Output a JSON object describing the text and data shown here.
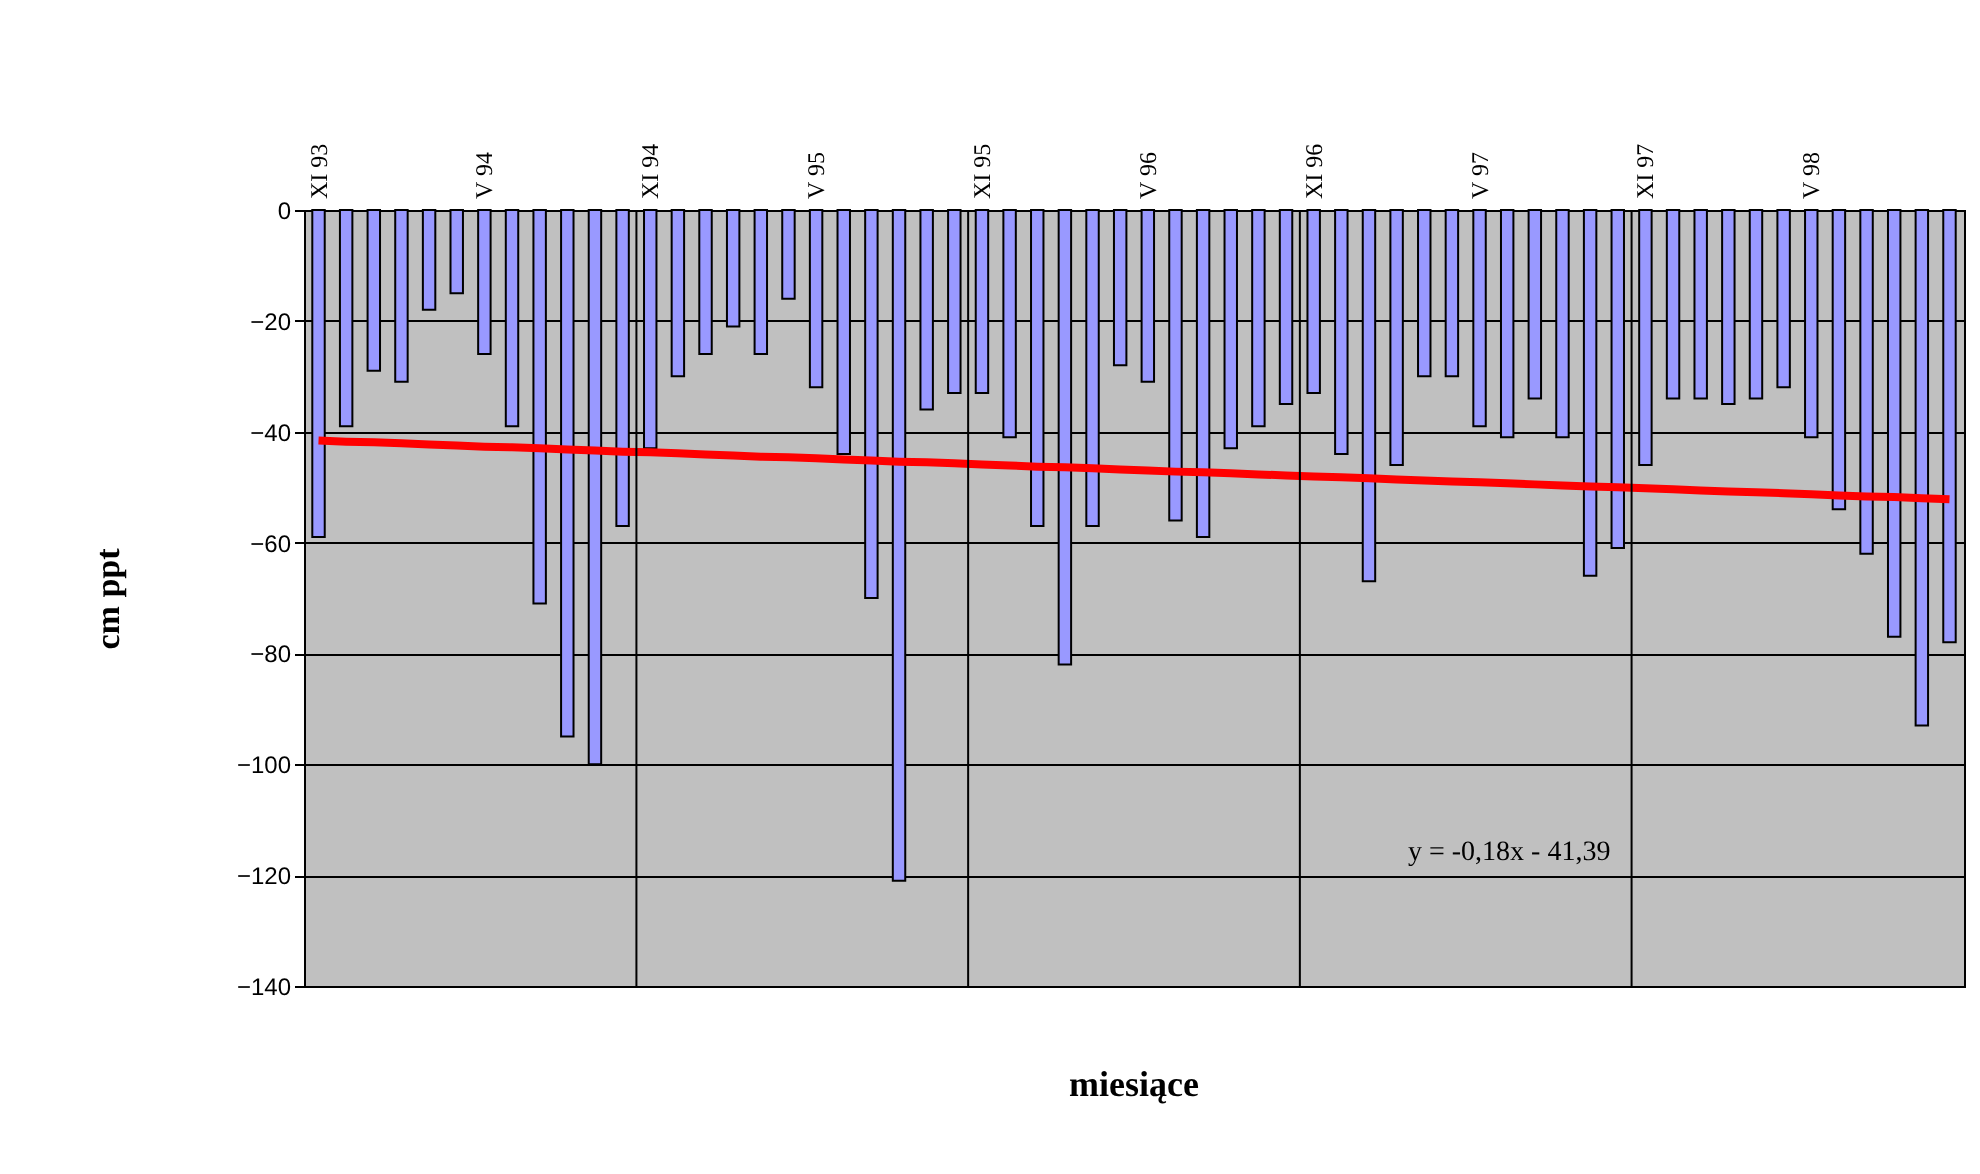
{
  "chart_data": {
    "type": "bar",
    "xlabel": "miesiące",
    "ylabel": "cm ppt",
    "categories": [
      "XI 93",
      null,
      null,
      null,
      null,
      null,
      "V 94",
      null,
      null,
      null,
      null,
      null,
      "XI 94",
      null,
      null,
      null,
      null,
      null,
      "V 95",
      null,
      null,
      null,
      null,
      null,
      "XI 95",
      null,
      null,
      null,
      null,
      null,
      "V 96",
      null,
      null,
      null,
      null,
      null,
      "XI 96",
      null,
      null,
      null,
      null,
      null,
      "V 97",
      null,
      null,
      null,
      null,
      null,
      "XI 97",
      null,
      null,
      null,
      null,
      null,
      "V 98",
      null,
      null,
      null,
      null,
      null
    ],
    "series": [
      {
        "color": "#9999ff",
        "values": [
          -59,
          -39,
          -29,
          -31,
          -18,
          -15,
          -26,
          -39,
          -71,
          -95,
          -100,
          -57,
          -43,
          -30,
          -26,
          -21,
          -26,
          -16,
          -32,
          -44,
          -70,
          -121,
          -36,
          -33,
          -33,
          -41,
          -57,
          -82,
          -57,
          -28,
          -31,
          -56,
          -59,
          -43,
          -39,
          -35,
          -33,
          -44,
          -67,
          -46,
          -30,
          -30,
          -39,
          -41,
          -34,
          -41,
          -66,
          -61,
          -46,
          -34,
          -34,
          -35,
          -34,
          -32,
          -41,
          -54,
          -62,
          -77,
          -93,
          -78
        ]
      },
      {
        "type": "line",
        "color": "#ff0000",
        "values": [
          -41.6,
          -41.8,
          -41.9,
          -42.1,
          -42.3,
          -42.5,
          -42.7,
          -42.8,
          -43.0,
          -43.2,
          -43.4,
          -43.6,
          -43.7,
          -43.9,
          -44.1,
          -44.3,
          -44.5,
          -44.6,
          -44.8,
          -45.0,
          -45.2,
          -45.4,
          -45.5,
          -45.7,
          -45.9,
          -46.1,
          -46.3,
          -46.4,
          -46.6,
          -46.8,
          -47.0,
          -47.2,
          -47.3,
          -47.5,
          -47.7,
          -47.9,
          -48.1,
          -48.2,
          -48.4,
          -48.6,
          -48.8,
          -49.0,
          -49.1,
          -49.3,
          -49.5,
          -49.7,
          -49.9,
          -50.0,
          -50.2,
          -50.4,
          -50.6,
          -50.8,
          -50.9,
          -51.1,
          -51.3,
          -51.5,
          -51.7,
          -51.8,
          -52.0,
          -52.2
        ]
      }
    ],
    "ylim": [
      -140,
      0
    ],
    "yticks": [
      -140,
      -120,
      -100,
      -80,
      -60,
      -40,
      -20,
      0
    ],
    "grid": true,
    "annotations": [
      "y = -0,18x - 41,39"
    ]
  }
}
